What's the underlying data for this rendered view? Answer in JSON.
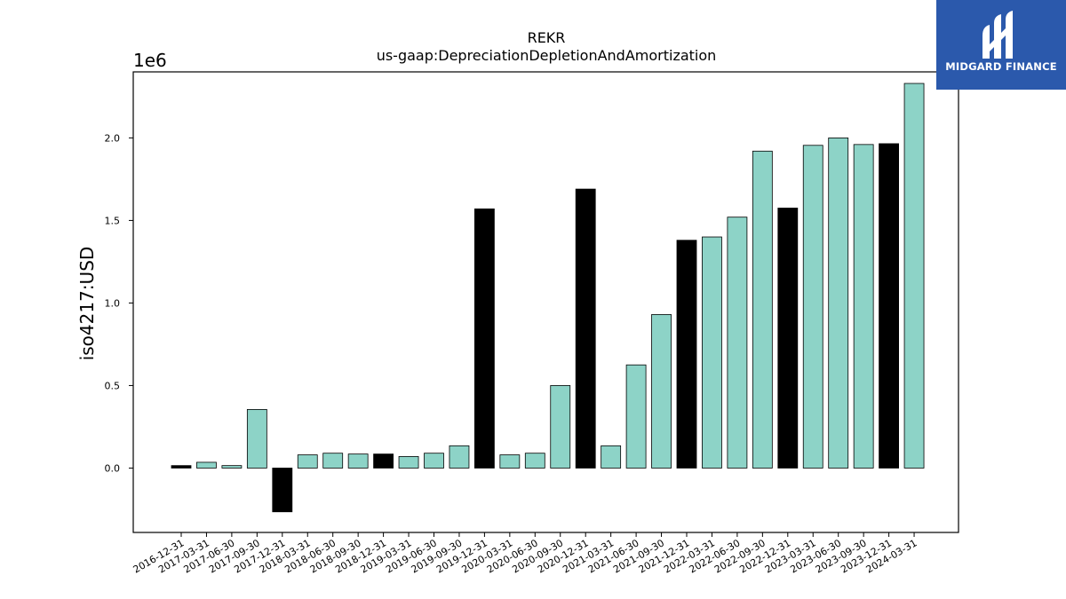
{
  "chart_data": {
    "type": "bar",
    "title": "REKR",
    "subtitle": "us-gaap:DepreciationDepletionAndAmortization",
    "ylabel": "iso4217:USD",
    "y_offset_label": "1e6",
    "ylim": [
      -0.39,
      2.4
    ],
    "yticks": [
      {
        "value": 0.0,
        "label": "0.0"
      },
      {
        "value": 0.5,
        "label": "0.5"
      },
      {
        "value": 1.0,
        "label": "1.0"
      },
      {
        "value": 1.5,
        "label": "1.5"
      },
      {
        "value": 2.0,
        "label": "2.0"
      }
    ],
    "grid": false,
    "colors": {
      "quarter": "#8dd3c7",
      "annual": "#000000",
      "edge": "#000000"
    },
    "categories": [
      "2016-12-31",
      "2017-03-31",
      "2017-06-30",
      "2017-09-30",
      "2017-12-31",
      "2018-03-31",
      "2018-06-30",
      "2018-09-30",
      "2018-12-31",
      "2019-03-31",
      "2019-06-30",
      "2019-09-30",
      "2019-12-31",
      "2020-03-31",
      "2020-06-30",
      "2020-09-30",
      "2020-12-31",
      "2021-03-31",
      "2021-06-30",
      "2021-09-30",
      "2021-12-31",
      "2022-03-31",
      "2022-06-30",
      "2022-09-30",
      "2022-12-31",
      "2023-03-31",
      "2023-06-30",
      "2023-09-30",
      "2023-12-31",
      "2024-03-31"
    ],
    "values": [
      0.015,
      0.035,
      0.015,
      0.355,
      -0.265,
      0.08,
      0.09,
      0.085,
      0.085,
      0.07,
      0.09,
      0.135,
      1.57,
      0.08,
      0.09,
      0.5,
      1.69,
      0.135,
      0.625,
      0.93,
      1.38,
      1.4,
      1.52,
      1.92,
      1.575,
      1.955,
      2.0,
      1.96,
      1.965,
      2.33
    ],
    "annual": [
      true,
      false,
      false,
      false,
      true,
      false,
      false,
      false,
      true,
      false,
      false,
      false,
      true,
      false,
      false,
      false,
      true,
      false,
      false,
      false,
      true,
      false,
      false,
      false,
      true,
      false,
      false,
      false,
      true,
      false
    ]
  },
  "logo": {
    "text": "MIDGARD FINANCE",
    "icon": "midgard-logo-icon"
  }
}
